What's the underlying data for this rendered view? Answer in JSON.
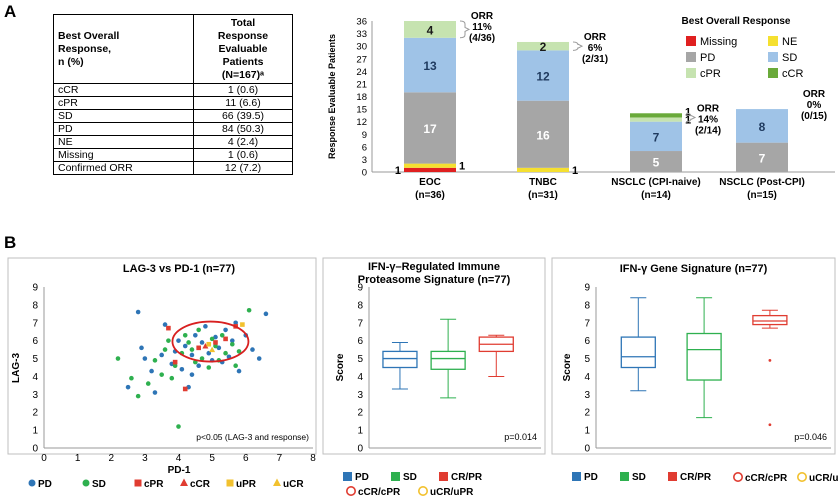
{
  "panel_a": {
    "letter": "A",
    "table": {
      "header_left": [
        "Best Overall",
        "Response,",
        "n (%)"
      ],
      "header_right": [
        "Total",
        "Response",
        "Evaluable",
        "Patients",
        "(N=167)ᵃ"
      ],
      "rows": [
        {
          "label": "cCR",
          "value": "1 (0.6)"
        },
        {
          "label": "cPR",
          "value": "11 (6.6)"
        },
        {
          "label": "SD",
          "value": "66 (39.5)"
        },
        {
          "label": "PD",
          "value": "84 (50.3)"
        },
        {
          "label": "NE",
          "value": "4 (2.4)"
        },
        {
          "label": "Missing",
          "value": "1 (0.6)"
        },
        {
          "label": "Confirmed ORR",
          "value": "12 (7.2)"
        }
      ]
    }
  },
  "panel_b": {
    "letter": "B"
  },
  "colors": {
    "Missing": "#e02020",
    "NE": "#f5e030",
    "PD": "#a6a6a6",
    "SD": "#9fc3e7",
    "cPR": "#c6e3b0",
    "cCR": "#6aaa3a",
    "box_PD": "#2e75b6",
    "box_SD": "#2eb04f",
    "box_CR": "#e03c31",
    "box_u": "#f2c12e"
  },
  "chart_data": [
    {
      "type": "bar",
      "stacked": true,
      "ylabel": "Response Evaluable Patients",
      "ylim": [
        0,
        36
      ],
      "yticks": [
        "0",
        "3",
        "6",
        "9",
        "12",
        "15",
        "18",
        "21",
        "24",
        "27",
        "30",
        "33",
        "36"
      ],
      "categories": [
        {
          "name": "EOC",
          "n": "(n=36)"
        },
        {
          "name": "TNBC",
          "n": "(n=31)"
        },
        {
          "name": "NSCLC (CPI-naive)",
          "n": "(n=14)"
        },
        {
          "name": "NSCLC (Post-CPI)",
          "n": "(n=15)"
        }
      ],
      "series": [
        {
          "name": "Missing",
          "values": [
            1,
            0,
            0,
            0
          ]
        },
        {
          "name": "NE",
          "values": [
            1,
            1,
            0,
            0
          ]
        },
        {
          "name": "PD",
          "values": [
            17,
            16,
            5,
            7
          ]
        },
        {
          "name": "SD",
          "values": [
            13,
            12,
            7,
            8
          ]
        },
        {
          "name": "cPR",
          "values": [
            4,
            2,
            1,
            0
          ]
        },
        {
          "name": "cCR",
          "values": [
            0,
            0,
            1,
            0
          ]
        }
      ],
      "segment_labels": [
        [
          "1",
          "1",
          "17",
          "13",
          "4",
          ""
        ],
        [
          "",
          "1",
          "16",
          "12",
          "2",
          ""
        ],
        [
          "",
          "",
          "5",
          "7",
          "1",
          "1"
        ],
        [
          "",
          "",
          "7",
          "8",
          "",
          ""
        ]
      ],
      "orr": [
        {
          "lines": [
            "ORR",
            "11%",
            "(4/36)"
          ]
        },
        {
          "lines": [
            "ORR",
            "6%",
            "(2/31)"
          ]
        },
        {
          "lines": [
            "ORR",
            "14%",
            "(2/14)"
          ]
        },
        {
          "lines": [
            "ORR",
            "0%",
            "(0/15)"
          ]
        }
      ],
      "legend": {
        "title": "Best Overall Response",
        "placement": "top-right",
        "items": [
          "Missing",
          "NE",
          "PD",
          "SD",
          "cPR",
          "cCR"
        ]
      }
    },
    {
      "type": "scatter",
      "title": "LAG-3 vs PD-1 (n=77)",
      "xlabel": "PD-1",
      "ylabel": "LAG-3",
      "xlim": [
        0,
        8
      ],
      "ylim": [
        0,
        9
      ],
      "annotation": "p<0.05 (LAG-3 and response)",
      "legend": [
        "PD",
        "SD",
        "cPR",
        "cCR",
        "uPR",
        "uCR"
      ],
      "series": [
        {
          "name": "PD",
          "points": [
            [
              2.5,
              3.4
            ],
            [
              2.8,
              7.6
            ],
            [
              2.9,
              5.6
            ],
            [
              3.0,
              5.0
            ],
            [
              3.2,
              4.3
            ],
            [
              3.3,
              3.1
            ],
            [
              3.5,
              5.2
            ],
            [
              3.6,
              6.9
            ],
            [
              3.8,
              4.7
            ],
            [
              3.9,
              5.4
            ],
            [
              4.0,
              6.0
            ],
            [
              4.1,
              4.4
            ],
            [
              4.2,
              5.7
            ],
            [
              4.3,
              3.4
            ],
            [
              4.4,
              5.2
            ],
            [
              4.5,
              6.3
            ],
            [
              4.6,
              4.6
            ],
            [
              4.7,
              5.9
            ],
            [
              4.8,
              6.8
            ],
            [
              4.9,
              5.3
            ],
            [
              5.0,
              4.9
            ],
            [
              5.1,
              6.2
            ],
            [
              5.2,
              5.6
            ],
            [
              5.3,
              4.8
            ],
            [
              5.4,
              6.6
            ],
            [
              5.5,
              5.1
            ],
            [
              5.6,
              6.0
            ],
            [
              5.8,
              4.3
            ],
            [
              6.0,
              6.3
            ],
            [
              6.2,
              5.5
            ],
            [
              6.4,
              5.0
            ],
            [
              6.6,
              7.5
            ],
            [
              5.7,
              7.0
            ],
            [
              4.4,
              4.1
            ]
          ]
        },
        {
          "name": "SD",
          "points": [
            [
              2.2,
              5.0
            ],
            [
              2.6,
              3.9
            ],
            [
              2.8,
              2.9
            ],
            [
              3.1,
              3.6
            ],
            [
              3.3,
              4.9
            ],
            [
              3.5,
              4.1
            ],
            [
              3.6,
              5.5
            ],
            [
              3.7,
              6.0
            ],
            [
              3.8,
              3.9
            ],
            [
              4.0,
              1.2
            ],
            [
              4.1,
              5.3
            ],
            [
              4.2,
              6.3
            ],
            [
              4.4,
              5.5
            ],
            [
              4.5,
              4.8
            ],
            [
              4.6,
              6.6
            ],
            [
              4.7,
              5.0
            ],
            [
              4.9,
              4.5
            ],
            [
              5.0,
              6.1
            ],
            [
              5.1,
              5.7
            ],
            [
              5.2,
              4.9
            ],
            [
              5.3,
              6.3
            ],
            [
              5.4,
              5.3
            ],
            [
              5.6,
              5.8
            ],
            [
              5.7,
              4.6
            ],
            [
              5.8,
              5.4
            ],
            [
              6.1,
              7.7
            ],
            [
              4.3,
              5.9
            ],
            [
              3.9,
              4.6
            ]
          ]
        },
        {
          "name": "cPR",
          "points": [
            [
              3.7,
              6.7
            ],
            [
              3.9,
              4.8
            ],
            [
              4.6,
              5.6
            ],
            [
              5.1,
              5.9
            ],
            [
              5.4,
              6.1
            ],
            [
              4.2,
              3.3
            ],
            [
              5.7,
              6.8
            ]
          ]
        },
        {
          "name": "cCR",
          "points": [
            [
              4.8,
              5.7
            ]
          ]
        },
        {
          "name": "uPR",
          "points": [
            [
              4.9,
              5.8
            ],
            [
              5.9,
              6.9
            ]
          ]
        },
        {
          "name": "uCR",
          "points": [
            [
              5.0,
              5.5
            ]
          ]
        }
      ]
    },
    {
      "type": "box",
      "title": "IFN-γ–Regulated Immune Proteasome Signature (n=77)",
      "title_lines": [
        "IFN-γ–Regulated Immune",
        "Proteasome Signature (n=77)"
      ],
      "ylabel": "Score",
      "ylim": [
        0,
        9
      ],
      "annotation": "p=0.014",
      "boxes": [
        {
          "name": "PD",
          "min": 3.3,
          "q1": 4.5,
          "median": 5.0,
          "q3": 5.4,
          "max": 5.9
        },
        {
          "name": "SD",
          "min": 2.8,
          "q1": 4.4,
          "median": 5.0,
          "q3": 5.4,
          "max": 7.2
        },
        {
          "name": "CR/PR",
          "min": 4.0,
          "q1": 5.4,
          "median": 5.8,
          "q3": 6.2,
          "max": 6.3
        }
      ],
      "legend": [
        "PD",
        "SD",
        "CR/PR",
        "cCR/cPR",
        "uCR/uPR"
      ]
    },
    {
      "type": "box",
      "title": "IFN-γ Gene Signature (n=77)",
      "ylabel": "Score",
      "ylim": [
        0,
        9
      ],
      "annotation": "p=0.046",
      "boxes": [
        {
          "name": "PD",
          "min": 3.2,
          "q1": 4.5,
          "median": 5.1,
          "q3": 6.2,
          "max": 8.4
        },
        {
          "name": "SD",
          "min": 1.7,
          "q1": 3.8,
          "median": 5.5,
          "q3": 6.4,
          "max": 8.4
        },
        {
          "name": "CR/PR",
          "min": 6.7,
          "q1": 6.9,
          "median": 7.1,
          "q3": 7.4,
          "max": 7.7,
          "outliers": [
            4.9,
            1.3
          ]
        }
      ],
      "legend": [
        "PD",
        "SD",
        "CR/PR",
        "cCR/cPR",
        "uCR/uPR"
      ]
    }
  ]
}
